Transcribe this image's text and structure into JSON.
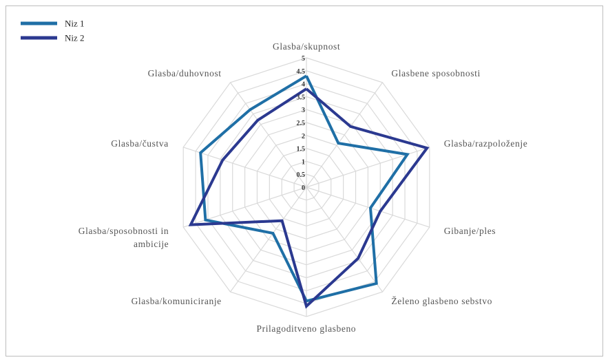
{
  "chart_data": {
    "type": "radar",
    "categories": [
      "Glasba/skupnost",
      "Glasbene sposobnosti",
      "Glasba/razpoloženje",
      "Gibanje/ples",
      "Želeno glasbeno sebstvo",
      "Prilagoditveno glasbeno",
      "Glasba/komuniciranje",
      "Glasba/sposobnosti in ambicije",
      "Glasba/čustva",
      "Glasba/duhovnost"
    ],
    "series": [
      {
        "name": "Niz 1",
        "color": "#1f6fa6",
        "values": [
          4.3,
          2.1,
          4.1,
          2.6,
          4.6,
          4.4,
          2.2,
          4.1,
          4.3,
          3.7
        ]
      },
      {
        "name": "Niz 2",
        "color": "#2b3990",
        "values": [
          3.8,
          2.9,
          4.9,
          3.0,
          3.4,
          4.6,
          1.6,
          4.7,
          3.4,
          3.2
        ]
      }
    ],
    "rlim": [
      0,
      5
    ],
    "rticks": [
      0,
      0.5,
      1,
      1.5,
      2,
      2.5,
      3,
      3.5,
      4,
      4.5,
      5
    ],
    "grid": true,
    "legend": "top-left"
  }
}
